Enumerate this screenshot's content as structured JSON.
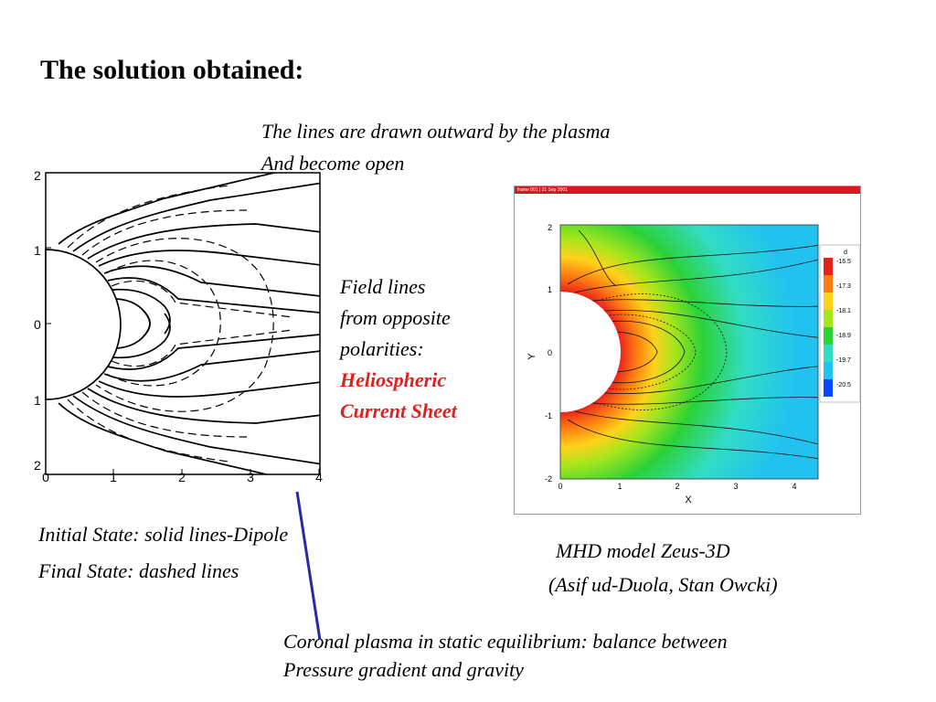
{
  "slide": {
    "title": "The solution obtained:",
    "caption_top": [
      "The lines are drawn outward by the plasma",
      "And become open"
    ],
    "field_note": {
      "lines": [
        "Field lines",
        "from opposite",
        "polarities:"
      ],
      "emphasis": [
        "Heliospheric",
        "Current Sheet"
      ]
    },
    "left_caption": [
      "Initial State: solid lines-Dipole",
      "Final State: dashed lines"
    ],
    "mhd_caption": [
      "MHD model Zeus-3D",
      "(Asif ud-Duola, Stan Owcki)"
    ],
    "bottom_caption": [
      "Coronal plasma in static equilibrium: balance between",
      "Pressure gradient and gravity"
    ]
  },
  "left_plot": {
    "x_ticks": [
      "0",
      "1",
      "2",
      "3",
      "4"
    ],
    "y_ticks": [
      "2",
      "1",
      "0",
      "1",
      "2"
    ],
    "legend": {
      "solid": "Initial State",
      "dashed": "Final State"
    }
  },
  "mhd_plot": {
    "banner": "frame 001 | 21 Sep 2001",
    "xlabel": "X",
    "ylabel": "Y",
    "x_ticks": [
      "0",
      "1",
      "2",
      "3",
      "4"
    ],
    "y_ticks": [
      "2",
      "1",
      "0",
      "-1",
      "-2"
    ],
    "colorbar_title": "d",
    "colorbar_labels": [
      "-16.5",
      "-17.3",
      "-18.1",
      "-18.9",
      "-19.7",
      "-20.5"
    ],
    "colors": [
      "#e8201c",
      "#ff7a12",
      "#ffd21a",
      "#a6e61c",
      "#2cd237",
      "#31dcc5",
      "#22c2f0",
      "#0a47ff"
    ]
  },
  "colors": {
    "emphasis": "#e0201f",
    "connector": "#2a2aa0"
  }
}
